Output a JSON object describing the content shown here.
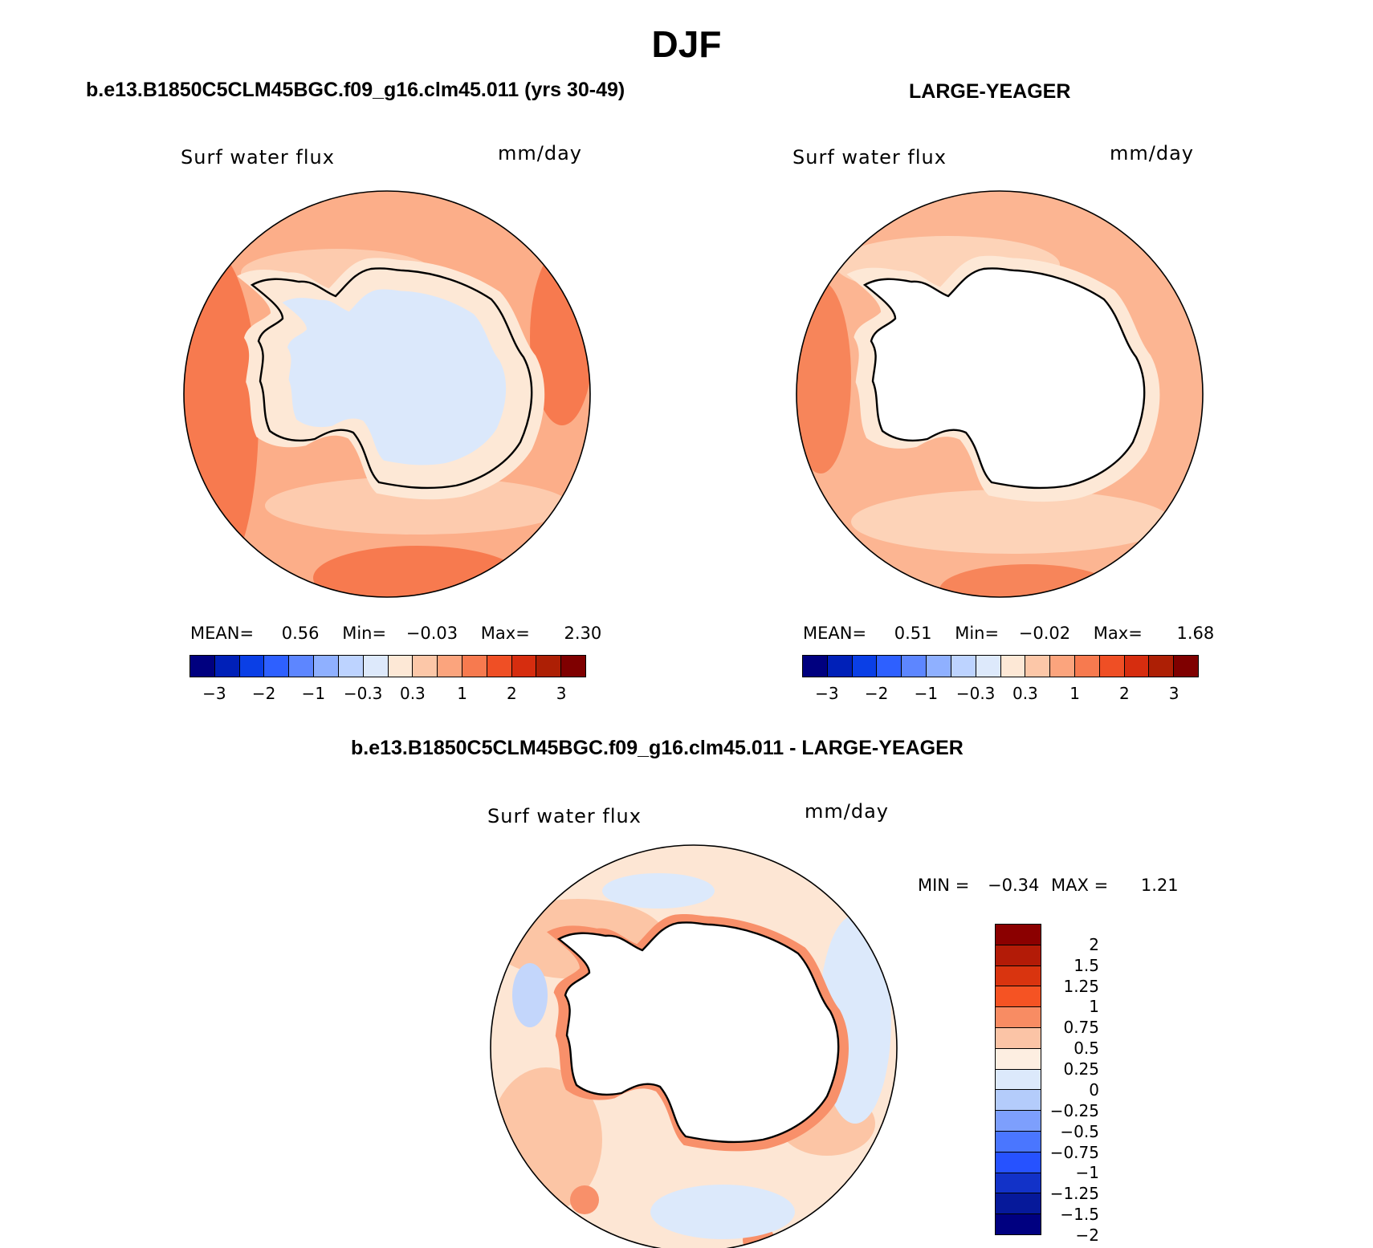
{
  "title": "DJF",
  "panels": {
    "top_left": {
      "title": "b.e13.B1850C5CLM45BGC.f09_g16.clm45.011 (yrs 30-49)",
      "variable": "Surf water flux",
      "units": "mm/day",
      "stats": {
        "mean_label": "MEAN=",
        "mean": "0.56",
        "min_label": "Min=",
        "min": "−0.03",
        "max_label": "Max=",
        "max": "2.30"
      }
    },
    "top_right": {
      "title": "LARGE-YEAGER",
      "variable": "Surf water flux",
      "units": "mm/day",
      "stats": {
        "mean_label": "MEAN=",
        "mean": "0.51",
        "min_label": "Min=",
        "min": "−0.02",
        "max_label": "Max=",
        "max": "1.68"
      }
    },
    "bottom": {
      "title": "b.e13.B1850C5CLM45BGC.f09_g16.clm45.011 - LARGE-YEAGER",
      "variable": "Surf water flux",
      "units": "mm/day",
      "stats": {
        "min_label": "MIN =",
        "min": "−0.34",
        "max_label": "MAX =",
        "max": "1.21"
      }
    }
  },
  "colorbars": {
    "horizontal": {
      "colors": [
        "#00007f",
        "#0020b8",
        "#0a3fe6",
        "#2e60ff",
        "#5d86ff",
        "#8fb0ff",
        "#bdd3ff",
        "#dde9fb",
        "#fde8d6",
        "#fcc7a8",
        "#fba47d",
        "#f77a4f",
        "#ef4f25",
        "#d62d0f",
        "#ad1f05",
        "#7f0000"
      ],
      "tick_labels": [
        "−3",
        "−2",
        "−1",
        "−0.3",
        "0.3",
        "1",
        "2",
        "3"
      ]
    },
    "vertical": {
      "colors": [
        "#8b0000",
        "#b31b07",
        "#d9340f",
        "#f55323",
        "#f88c63",
        "#fbc4a6",
        "#fdeee1",
        "#dce9fb",
        "#b4ccfb",
        "#7d9ffd",
        "#4a76ff",
        "#2652ff",
        "#1232c8",
        "#06199a",
        "#000080"
      ],
      "tick_labels": [
        "2",
        "1.5",
        "1.25",
        "1",
        "0.75",
        "0.5",
        "0.25",
        "0",
        "−0.25",
        "−0.5",
        "−0.75",
        "−1",
        "−1.25",
        "−1.5",
        "−2"
      ]
    }
  },
  "map_colors": {
    "land": "#ffffff",
    "coast": "#000000",
    "top_left": {
      "ocean_base": "#fcae89",
      "ocean_strong": "#f77a4f",
      "ocean_weak": "#fdcbae",
      "shelf": "#fde8d6",
      "interior": "#dbe8fb"
    },
    "top_right": {
      "ocean_base": "#fcb592",
      "ocean_strong": "#f7855a",
      "ocean_weak": "#fdd3b8",
      "shelf": "#fde8d6",
      "interior": "#ffffff"
    },
    "bottom": {
      "ocean_base": "#fde6d4",
      "ocean_pos": "#fcc5a5",
      "ocean_strong": "#f8906a",
      "ocean_neg": "#dce9fb",
      "ocean_neg2": "#c3d6fb",
      "interior": "#ffffff"
    }
  }
}
